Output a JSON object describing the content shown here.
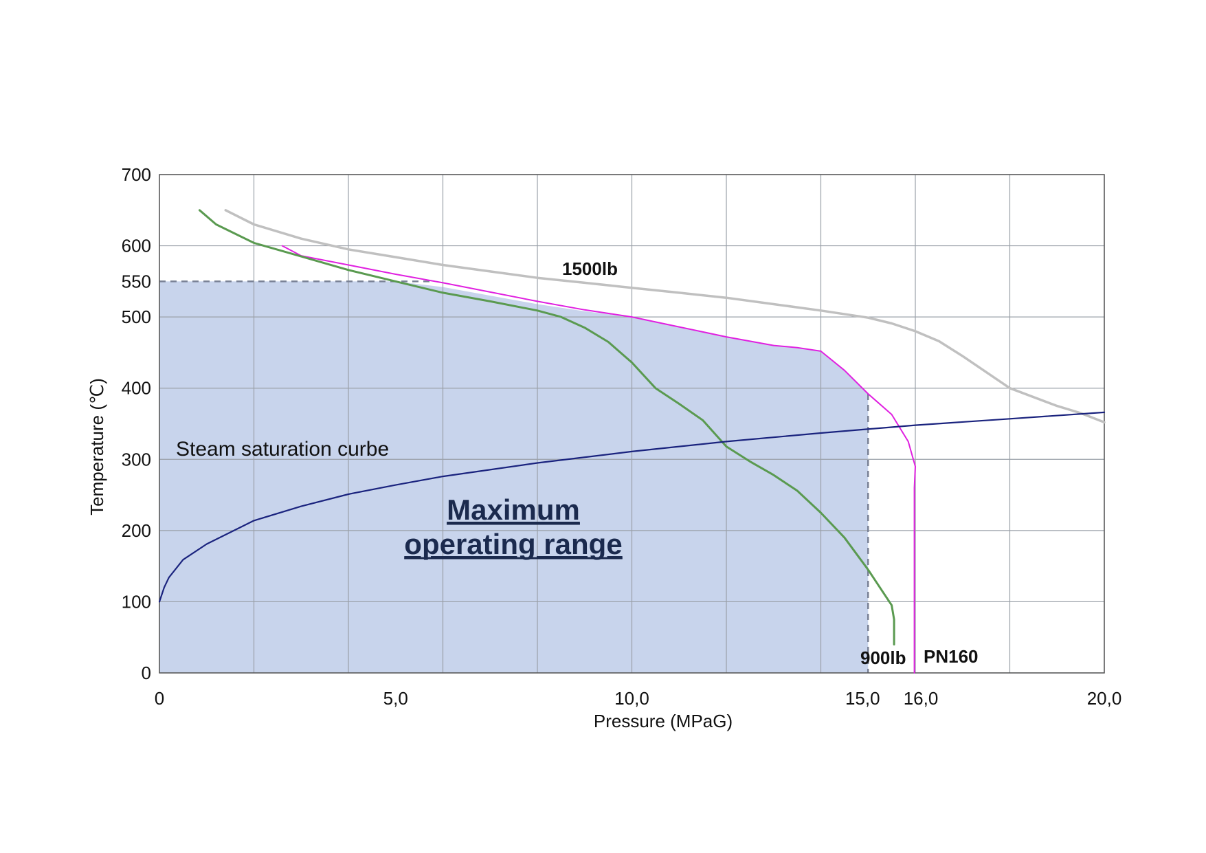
{
  "chart_data": {
    "type": "line",
    "xlabel": "Pressure (MPaG)",
    "ylabel": "Temperature (℃)",
    "xlim": [
      0,
      20
    ],
    "ylim": [
      0,
      700
    ],
    "x_ticks": [
      {
        "value": 0,
        "label": "0"
      },
      {
        "value": 5,
        "label": "5,0"
      },
      {
        "value": 10,
        "label": "10,0"
      },
      {
        "value": 15,
        "label": "15,0"
      },
      {
        "value": 16,
        "label": "16,0"
      },
      {
        "value": 20,
        "label": "20,0"
      }
    ],
    "y_ticks": [
      {
        "value": 0,
        "label": "0"
      },
      {
        "value": 100,
        "label": "100"
      },
      {
        "value": 200,
        "label": "200"
      },
      {
        "value": 300,
        "label": "300"
      },
      {
        "value": 400,
        "label": "400"
      },
      {
        "value": 500,
        "label": "500"
      },
      {
        "value": 550,
        "label": "550"
      },
      {
        "value": 600,
        "label": "600"
      },
      {
        "value": 700,
        "label": "700"
      }
    ],
    "x_grid": [
      0,
      2,
      4,
      6,
      8,
      10,
      12,
      14,
      16,
      18,
      20
    ],
    "y_grid": [
      0,
      100,
      200,
      300,
      400,
      500,
      600,
      700
    ],
    "grid": true,
    "series": [
      {
        "name": "1500lb",
        "color": "#c0c0c0",
        "x": [
          1.4,
          2.0,
          3.0,
          4.0,
          5.0,
          6.0,
          7.0,
          8.0,
          9.0,
          10.0,
          11.0,
          12.0,
          13.0,
          14.0,
          15.0,
          15.5,
          16.0,
          16.5,
          17.0,
          18.0,
          19.0,
          19.5,
          20.0
        ],
        "y": [
          650,
          630,
          610,
          595,
          584,
          573,
          564,
          555,
          548,
          541,
          534,
          527,
          518,
          509,
          499,
          491,
          480,
          466,
          445,
          400,
          375,
          365,
          352
        ]
      },
      {
        "name": "PN160",
        "color": "#e020e0",
        "x": [
          2.6,
          3.0,
          4.0,
          5.0,
          6.0,
          7.0,
          8.0,
          9.0,
          10.0,
          11.0,
          12.0,
          13.0,
          13.5,
          14.0,
          14.5,
          15.0,
          15.5,
          15.85,
          16.0,
          15.98,
          15.98,
          15.98
        ],
        "y": [
          600,
          586,
          573,
          560,
          548,
          535,
          522,
          510,
          500,
          486,
          472,
          460,
          457,
          452,
          425,
          392,
          363,
          325,
          290,
          260,
          100,
          0
        ]
      },
      {
        "name": "900lb",
        "color": "#5a9a50",
        "x": [
          0.85,
          1.2,
          2.0,
          3.0,
          4.0,
          5.0,
          6.0,
          7.0,
          8.0,
          8.5,
          9.0,
          9.5,
          10.0,
          10.5,
          11.0,
          11.5,
          12.0,
          12.5,
          13.0,
          13.5,
          14.0,
          14.5,
          15.0,
          15.3,
          15.5,
          15.55,
          15.55
        ],
        "y": [
          650,
          630,
          604,
          585,
          566,
          550,
          534,
          522,
          509,
          500,
          485,
          465,
          436,
          400,
          378,
          355,
          318,
          297,
          278,
          256,
          225,
          190,
          145,
          115,
          95,
          75,
          40
        ]
      },
      {
        "name": "Steam saturation curbe",
        "color": "#1a237e",
        "x": [
          0,
          0.1,
          0.2,
          0.5,
          1.0,
          2.0,
          3.0,
          4.0,
          5.0,
          6.0,
          8.0,
          10.0,
          12.0,
          14.0,
          16.0,
          18.0,
          20.0
        ],
        "y": [
          100,
          120,
          134,
          159,
          181,
          214,
          234,
          251,
          264,
          276,
          295,
          311,
          325,
          337,
          348,
          357,
          366
        ]
      }
    ],
    "region": {
      "name": "Maximum operating range",
      "color": "#c8d4ec",
      "boundary_x": [
        0,
        0,
        5.0,
        6.0,
        7.0,
        8.0,
        9.0,
        10.0,
        11.0,
        12.0,
        13.0,
        13.5,
        14.0,
        14.5,
        15.0,
        15.0
      ],
      "boundary_y": [
        0,
        550,
        550,
        542,
        530,
        518,
        508,
        500,
        486,
        472,
        460,
        457,
        452,
        425,
        392,
        0
      ],
      "dashed_top": 550,
      "dashed_right": 15.0
    },
    "labels": {
      "series_1500": "1500lb",
      "series_900": "900lb",
      "series_pn160": "PN160",
      "steam": "Steam saturation curbe",
      "region_line1": "Maximum",
      "region_line2": "operating range"
    }
  }
}
